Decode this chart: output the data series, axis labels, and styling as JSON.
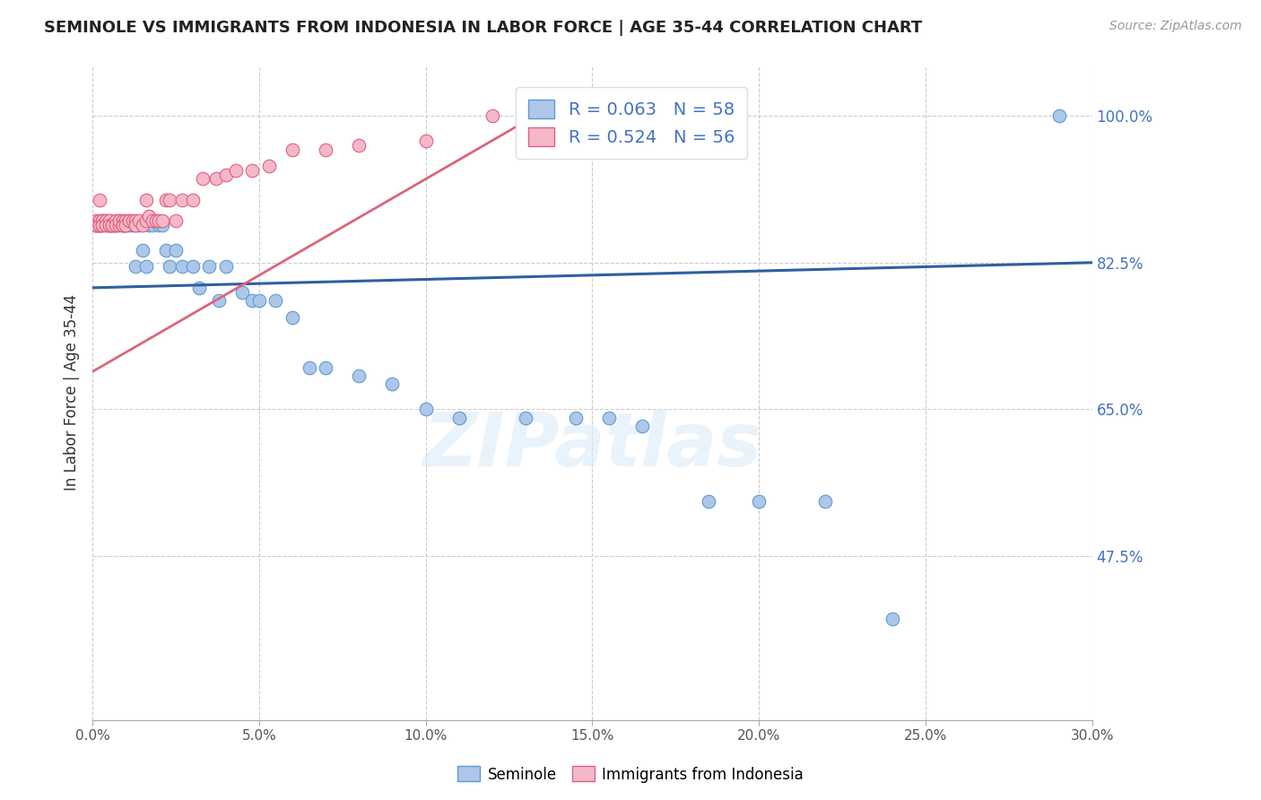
{
  "title": "SEMINOLE VS IMMIGRANTS FROM INDONESIA IN LABOR FORCE | AGE 35-44 CORRELATION CHART",
  "source": "Source: ZipAtlas.com",
  "ylabel": "In Labor Force | Age 35-44",
  "xlim": [
    0.0,
    0.3
  ],
  "ylim": [
    0.28,
    1.06
  ],
  "xtick_labels": [
    "0.0%",
    "5.0%",
    "10.0%",
    "15.0%",
    "20.0%",
    "25.0%",
    "30.0%"
  ],
  "xtick_values": [
    0.0,
    0.05,
    0.1,
    0.15,
    0.2,
    0.25,
    0.3
  ],
  "ytick_labels": [
    "47.5%",
    "65.0%",
    "82.5%",
    "100.0%"
  ],
  "ytick_values": [
    0.475,
    0.65,
    0.825,
    1.0
  ],
  "grid_color": "#cccccc",
  "background_color": "#ffffff",
  "seminole_color": "#aec6e8",
  "seminole_edge_color": "#5b9bd5",
  "indonesia_color": "#f4b8c8",
  "indonesia_edge_color": "#e06080",
  "seminole_R": 0.063,
  "seminole_N": 58,
  "indonesia_R": 0.524,
  "indonesia_N": 56,
  "legend_color": "#4472c4",
  "regression_blue_color": "#2e5fa3",
  "regression_pink_color": "#d9667a",
  "watermark": "ZIPatlas",
  "seminole_x": [
    0.001,
    0.001,
    0.002,
    0.002,
    0.003,
    0.003,
    0.004,
    0.004,
    0.005,
    0.005,
    0.005,
    0.006,
    0.007,
    0.007,
    0.008,
    0.009,
    0.01,
    0.01,
    0.011,
    0.012,
    0.013,
    0.013,
    0.014,
    0.015,
    0.016,
    0.017,
    0.018,
    0.02,
    0.021,
    0.022,
    0.023,
    0.025,
    0.027,
    0.03,
    0.032,
    0.035,
    0.038,
    0.04,
    0.045,
    0.048,
    0.05,
    0.055,
    0.06,
    0.065,
    0.07,
    0.08,
    0.09,
    0.1,
    0.11,
    0.13,
    0.145,
    0.155,
    0.165,
    0.185,
    0.2,
    0.22,
    0.24,
    0.29
  ],
  "seminole_y": [
    0.87,
    0.87,
    0.87,
    0.87,
    0.875,
    0.875,
    0.87,
    0.875,
    0.875,
    0.87,
    0.87,
    0.87,
    0.87,
    0.87,
    0.875,
    0.87,
    0.87,
    0.87,
    0.87,
    0.87,
    0.87,
    0.82,
    0.87,
    0.84,
    0.82,
    0.87,
    0.87,
    0.87,
    0.87,
    0.84,
    0.82,
    0.84,
    0.82,
    0.82,
    0.795,
    0.82,
    0.78,
    0.82,
    0.79,
    0.78,
    0.78,
    0.78,
    0.76,
    0.7,
    0.7,
    0.69,
    0.68,
    0.65,
    0.64,
    0.64,
    0.64,
    0.64,
    0.63,
    0.54,
    0.54,
    0.54,
    0.4,
    1.0
  ],
  "indonesia_x": [
    0.001,
    0.001,
    0.001,
    0.002,
    0.002,
    0.002,
    0.002,
    0.003,
    0.003,
    0.003,
    0.004,
    0.004,
    0.005,
    0.005,
    0.005,
    0.006,
    0.006,
    0.007,
    0.007,
    0.008,
    0.008,
    0.009,
    0.009,
    0.009,
    0.01,
    0.01,
    0.011,
    0.011,
    0.012,
    0.013,
    0.013,
    0.014,
    0.015,
    0.016,
    0.016,
    0.017,
    0.018,
    0.019,
    0.02,
    0.021,
    0.022,
    0.023,
    0.025,
    0.027,
    0.03,
    0.033,
    0.037,
    0.04,
    0.043,
    0.048,
    0.053,
    0.06,
    0.07,
    0.08,
    0.1,
    0.12
  ],
  "indonesia_y": [
    0.87,
    0.875,
    0.87,
    0.9,
    0.875,
    0.87,
    0.87,
    0.875,
    0.87,
    0.87,
    0.875,
    0.87,
    0.87,
    0.875,
    0.87,
    0.87,
    0.87,
    0.875,
    0.87,
    0.87,
    0.875,
    0.875,
    0.87,
    0.87,
    0.875,
    0.87,
    0.875,
    0.875,
    0.875,
    0.875,
    0.87,
    0.875,
    0.87,
    0.875,
    0.9,
    0.88,
    0.875,
    0.875,
    0.875,
    0.875,
    0.9,
    0.9,
    0.875,
    0.9,
    0.9,
    0.925,
    0.925,
    0.93,
    0.935,
    0.935,
    0.94,
    0.96,
    0.96,
    0.965,
    0.97,
    1.0
  ]
}
